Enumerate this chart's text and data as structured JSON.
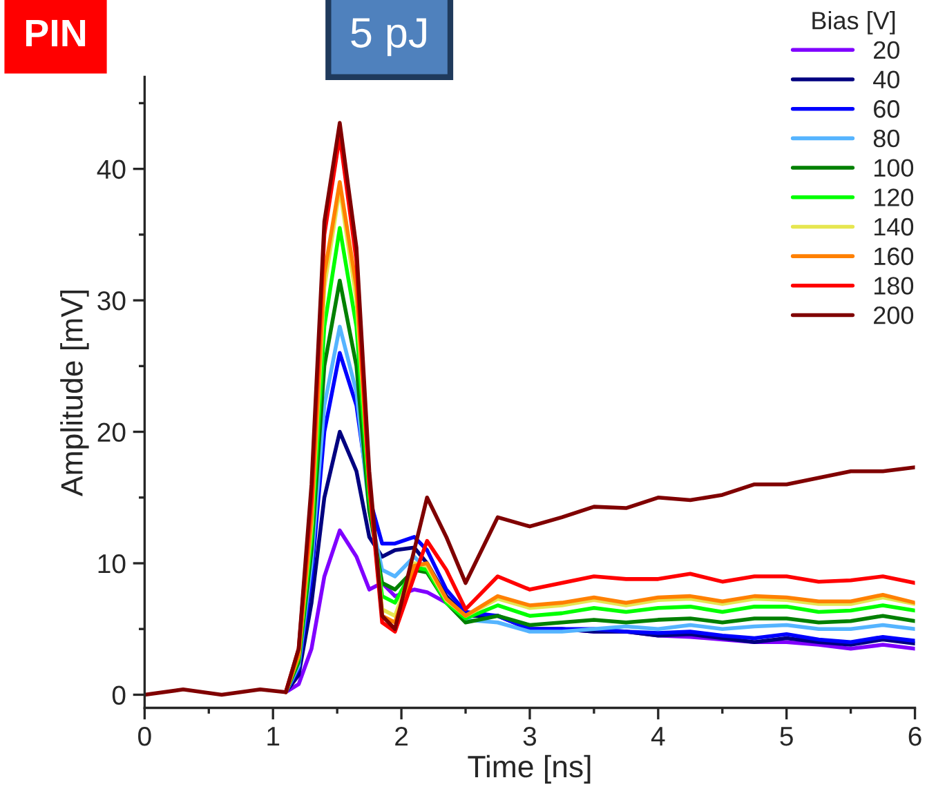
{
  "chart_data": {
    "type": "line",
    "xlabel": "Time [ns]",
    "ylabel": "Amplitude [mV]",
    "legend_title": "Bias [V]",
    "annotations": [
      "5 pJ",
      "PIN"
    ],
    "xlim": [
      0,
      6
    ],
    "ylim": [
      -1,
      47
    ],
    "xticks": [
      0,
      1,
      2,
      3,
      4,
      5,
      6
    ],
    "yticks": [
      0,
      10,
      20,
      30,
      40
    ],
    "grid": false,
    "legend": "top right",
    "marker": "none",
    "line_style": "solid",
    "x": [
      0,
      0.3,
      0.6,
      0.9,
      1.1,
      1.2,
      1.3,
      1.4,
      1.52,
      1.65,
      1.75,
      1.85,
      1.95,
      2.1,
      2.2,
      2.35,
      2.5,
      2.75,
      3.0,
      3.25,
      3.5,
      3.75,
      4.0,
      4.25,
      4.5,
      4.75,
      5.0,
      5.25,
      5.5,
      5.75,
      6.0
    ],
    "series": [
      {
        "name": "20",
        "color": "#8000ff",
        "values": [
          null,
          null,
          null,
          null,
          0.2,
          0.8,
          3.5,
          9,
          12.5,
          10.5,
          8,
          8.5,
          7.5,
          8,
          7.8,
          7,
          6,
          6,
          5,
          5,
          4.8,
          4.8,
          4.5,
          4.4,
          4.2,
          4,
          4,
          3.8,
          3.5,
          3.8,
          3.5
        ]
      },
      {
        "name": "40",
        "color": "#000080",
        "values": [
          null,
          null,
          null,
          null,
          0.2,
          1.5,
          7,
          15,
          20,
          17,
          12,
          10.5,
          11,
          11.2,
          10,
          7.5,
          6,
          6,
          5,
          5,
          4.8,
          4.8,
          4.5,
          4.6,
          4.3,
          4,
          4.3,
          4,
          3.8,
          4.2,
          3.9
        ]
      },
      {
        "name": "60",
        "color": "#0000ff",
        "values": [
          null,
          null,
          null,
          null,
          0.2,
          2,
          9,
          20,
          26,
          22,
          15,
          11.5,
          11.5,
          12,
          11,
          8,
          6.3,
          6,
          5,
          5,
          5,
          4.8,
          4.7,
          4.8,
          4.5,
          4.3,
          4.6,
          4.2,
          4,
          4.4,
          4.1
        ]
      },
      {
        "name": "80",
        "color": "#55b4ff",
        "values": [
          null,
          null,
          null,
          null,
          0.2,
          2.2,
          10,
          22,
          28,
          23,
          14,
          9.5,
          9,
          10.5,
          9.5,
          7,
          5.7,
          5.5,
          4.8,
          4.8,
          5,
          5.2,
          5,
          5.3,
          5,
          5.2,
          5.3,
          5,
          5,
          5.3,
          5
        ]
      },
      {
        "name": "100",
        "color": "#008000",
        "values": [
          null,
          null,
          null,
          null,
          0.2,
          2.5,
          11,
          25,
          31.5,
          25,
          14,
          8.5,
          8,
          9.5,
          9.3,
          7,
          5.5,
          6,
          5.3,
          5.5,
          5.7,
          5.5,
          5.7,
          5.8,
          5.5,
          5.8,
          5.8,
          5.5,
          5.6,
          6,
          5.6
        ]
      },
      {
        "name": "120",
        "color": "#00ff00",
        "values": [
          null,
          null,
          null,
          null,
          0.2,
          2.8,
          12,
          28,
          35.5,
          28,
          15,
          7.5,
          7,
          9.7,
          9.5,
          7,
          5.8,
          6.8,
          6,
          6.2,
          6.6,
          6.3,
          6.6,
          6.7,
          6.3,
          6.7,
          6.7,
          6.3,
          6.4,
          6.8,
          6.4
        ]
      },
      {
        "name": "140",
        "color": "#e6e650",
        "values": [
          null,
          null,
          null,
          null,
          0.2,
          3,
          13,
          31,
          38.5,
          30,
          16,
          6.5,
          6,
          10,
          9.8,
          7.2,
          6,
          7.3,
          6.6,
          6.8,
          7.2,
          6.8,
          7.2,
          7.3,
          6.9,
          7.3,
          7.2,
          6.9,
          6.9,
          7.4,
          6.9
        ]
      },
      {
        "name": "160",
        "color": "#ff8000",
        "values": [
          null,
          null,
          null,
          null,
          0.2,
          3,
          13.5,
          32,
          39,
          31,
          16,
          6,
          5.5,
          9.8,
          10,
          7.3,
          6,
          7.5,
          6.8,
          7,
          7.4,
          7,
          7.4,
          7.5,
          7.1,
          7.5,
          7.4,
          7.1,
          7.1,
          7.6,
          7
        ]
      },
      {
        "name": "180",
        "color": "#ff0000",
        "values": [
          null,
          null,
          null,
          null,
          0.2,
          3.5,
          15,
          35,
          42.5,
          33,
          16,
          5.5,
          4.8,
          9,
          11.7,
          9.5,
          6.5,
          9,
          8,
          8.5,
          9,
          8.8,
          8.8,
          9.2,
          8.6,
          9,
          9,
          8.6,
          8.7,
          9,
          8.5
        ]
      },
      {
        "name": "200",
        "color": "#800000",
        "values": [
          0,
          0.4,
          0,
          0.4,
          0.2,
          3.5,
          16,
          36,
          43.5,
          34,
          17,
          6,
          5,
          11,
          15,
          12,
          8.5,
          13.5,
          12.8,
          13.5,
          14.3,
          14.2,
          15,
          14.8,
          15.2,
          16,
          16,
          16.5,
          17,
          17,
          17.3
        ]
      }
    ]
  }
}
